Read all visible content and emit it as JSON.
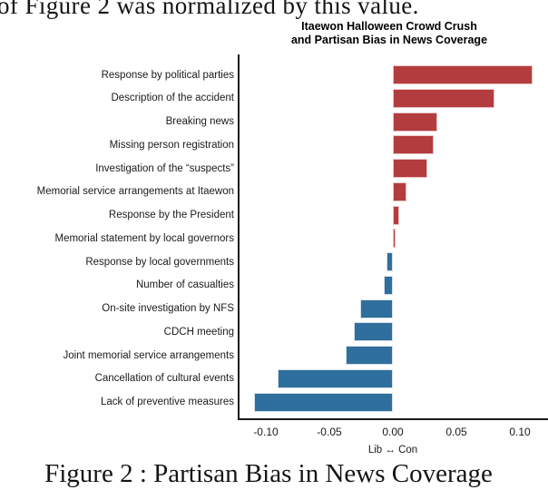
{
  "page": {
    "top_text": "of Figure 2 was normalized by this value.",
    "caption": "Figure 2 : Partisan Bias in News Coverage"
  },
  "chart_data": {
    "type": "bar",
    "orientation": "horizontal",
    "title": "Itaewon Halloween Crowd Crush and Partisan Bias in News Coverage",
    "title_lines": [
      "Itaewon Halloween Crowd Crush",
      "and Partisan Bias in News Coverage"
    ],
    "xlabel": "Lib ↔ Con",
    "categories": [
      "Response by political parties",
      "Description of the accident",
      "Breaking news",
      "Missing person registration",
      "Investigation of the “suspects”",
      "Memorial service arrangements at Itaewon",
      "Response by the President",
      "Memorial statement by local governors",
      "Response by local governments",
      "Number of casualties",
      "On-site investigation by NFS",
      "CDCH meeting",
      "Joint memorial service arrangements",
      "Cancellation of cultural events",
      "Lack of preventive measures"
    ],
    "values": [
      0.11,
      0.08,
      0.035,
      0.032,
      0.027,
      0.011,
      0.005,
      0.001,
      -0.005,
      -0.007,
      -0.026,
      -0.031,
      -0.037,
      -0.091,
      -0.109
    ],
    "xticks": [
      -0.1,
      -0.05,
      0.0,
      0.05,
      0.1
    ],
    "xtick_labels": [
      "-0.10",
      "-0.05",
      "0.00",
      "0.05",
      "0.10"
    ],
    "xlim": [
      -0.122,
      0.122
    ],
    "grid": false,
    "legend": null,
    "colors": {
      "positive": "#b23c3e",
      "positive_edge": "#eec3c3",
      "negative": "#2f6f9d",
      "negative_edge": "#d7e0e9",
      "axis": "#1c1c1c",
      "text": "#111111"
    }
  }
}
